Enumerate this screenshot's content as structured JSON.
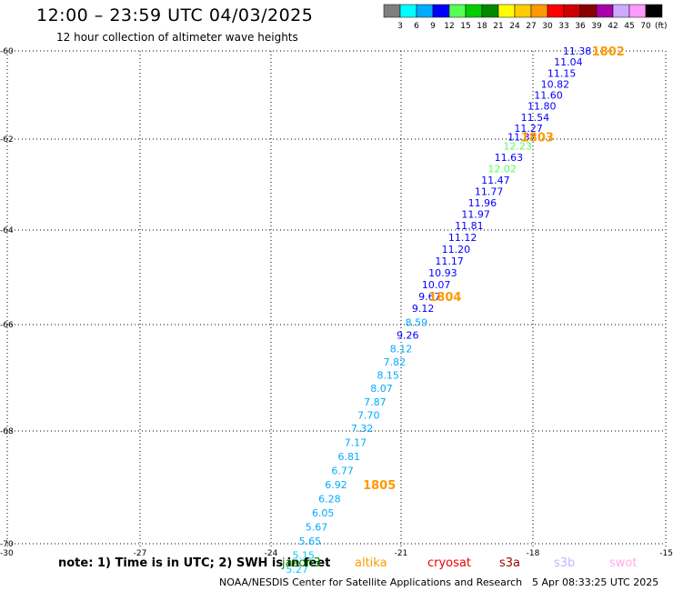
{
  "header": {
    "title": "12:00 – 23:59 UTC 04/03/2025",
    "subtitle": "12 hour collection of altimeter wave heights"
  },
  "legend": {
    "colors": [
      "#7f7f7f",
      "#00ffff",
      "#00aaff",
      "#0000ff",
      "#55ff55",
      "#00cc00",
      "#008800",
      "#ffff00",
      "#ffcc00",
      "#ff9900",
      "#ff0000",
      "#cc0000",
      "#880000",
      "#aa00aa",
      "#ccaaff",
      "#ff99ff",
      "#000000"
    ],
    "ticks": [
      "3",
      "6",
      "9",
      "12",
      "15",
      "18",
      "21",
      "24",
      "27",
      "30",
      "33",
      "36",
      "39",
      "42",
      "45",
      "70"
    ],
    "unit": "(ft)"
  },
  "footer": {
    "note": "note: 1) Time is in UTC; 2) SWH is in feet",
    "satellites": [
      {
        "name": "jason3",
        "color": "#008800"
      },
      {
        "name": "altika",
        "color": "#ff9900"
      },
      {
        "name": "cryosat",
        "color": "#ee0000"
      },
      {
        "name": "s3a",
        "color": "#990000"
      },
      {
        "name": "s3b",
        "color": "#c8b4ff"
      },
      {
        "name": "swot",
        "color": "#ffaaee"
      }
    ],
    "credit": "NOAA/NESDIS Center for Satellite Applications and Research",
    "timestamp": "5 Apr 08:33:25 UTC 2025"
  },
  "chart_data": {
    "type": "scatter",
    "xlim": [
      -30,
      -15
    ],
    "ylim": [
      -70,
      -60
    ],
    "x_ticks": [
      "-30",
      "-27",
      "-24",
      "-21",
      "-18",
      "-15"
    ],
    "y_ticks": [
      "-60",
      "-62",
      "-64",
      "-66",
      "-68",
      "-70"
    ],
    "grid": true,
    "points": [
      {
        "lon": -17.0,
        "lat": -60.0,
        "label": "11.38",
        "color": "#0000ff"
      },
      {
        "lon": -17.2,
        "lat": -60.25,
        "label": "11.04",
        "color": "#0000ff"
      },
      {
        "lon": -17.35,
        "lat": -60.5,
        "label": "11.15",
        "color": "#0000ff"
      },
      {
        "lon": -17.5,
        "lat": -60.75,
        "label": "10.82",
        "color": "#0000ff"
      },
      {
        "lon": -17.65,
        "lat": -61.0,
        "label": "11.60",
        "color": "#0000ff"
      },
      {
        "lon": -17.8,
        "lat": -61.25,
        "label": "11.80",
        "color": "#0000ff"
      },
      {
        "lon": -17.95,
        "lat": -61.5,
        "label": "11.54",
        "color": "#0000ff"
      },
      {
        "lon": -18.1,
        "lat": -61.75,
        "label": "11.27",
        "color": "#0000ff"
      },
      {
        "lon": -18.25,
        "lat": -61.95,
        "label": "11.37",
        "color": "#0000ff"
      },
      {
        "lon": -18.35,
        "lat": -62.15,
        "label": "12.23",
        "color": "#55ff55"
      },
      {
        "lon": -18.55,
        "lat": -62.4,
        "label": "11.63",
        "color": "#0000ff"
      },
      {
        "lon": -18.7,
        "lat": -62.65,
        "label": "12.02",
        "color": "#55ff55"
      },
      {
        "lon": -18.85,
        "lat": -62.9,
        "label": "11.47",
        "color": "#0000ff"
      },
      {
        "lon": -19.0,
        "lat": -63.15,
        "label": "11.77",
        "color": "#0000ff"
      },
      {
        "lon": -19.15,
        "lat": -63.4,
        "label": "11.96",
        "color": "#0000ff"
      },
      {
        "lon": -19.3,
        "lat": -63.65,
        "label": "11.97",
        "color": "#0000ff"
      },
      {
        "lon": -19.45,
        "lat": -63.9,
        "label": "11.81",
        "color": "#0000ff"
      },
      {
        "lon": -19.6,
        "lat": -64.15,
        "label": "11.12",
        "color": "#0000ff"
      },
      {
        "lon": -19.75,
        "lat": -64.4,
        "label": "11.20",
        "color": "#0000ff"
      },
      {
        "lon": -19.9,
        "lat": -64.65,
        "label": "11.17",
        "color": "#0000ff"
      },
      {
        "lon": -20.05,
        "lat": -64.9,
        "label": "10.93",
        "color": "#0000ff"
      },
      {
        "lon": -20.2,
        "lat": -65.15,
        "label": "10.07",
        "color": "#0000ff"
      },
      {
        "lon": -20.35,
        "lat": -65.4,
        "label": "9.67",
        "color": "#0000ff"
      },
      {
        "lon": -20.5,
        "lat": -65.65,
        "label": "9.12",
        "color": "#0000ff"
      },
      {
        "lon": -20.65,
        "lat": -65.95,
        "label": "8.59",
        "color": "#00aaff"
      },
      {
        "lon": -20.85,
        "lat": -66.2,
        "label": "9.26",
        "color": "#0000ff"
      },
      {
        "lon": -21.0,
        "lat": -66.45,
        "label": "8.12",
        "color": "#00aaff"
      },
      {
        "lon": -21.15,
        "lat": -66.7,
        "label": "7.82",
        "color": "#00aaff"
      },
      {
        "lon": -21.3,
        "lat": -66.95,
        "label": "8.15",
        "color": "#00aaff"
      },
      {
        "lon": -21.45,
        "lat": -67.2,
        "label": "8.07",
        "color": "#00aaff"
      },
      {
        "lon": -21.6,
        "lat": -67.45,
        "label": "7.87",
        "color": "#00aaff"
      },
      {
        "lon": -21.75,
        "lat": -67.7,
        "label": "7.70",
        "color": "#00aaff"
      },
      {
        "lon": -21.9,
        "lat": -67.95,
        "label": "7.32",
        "color": "#00aaff"
      },
      {
        "lon": -22.05,
        "lat": -68.2,
        "label": "7.17",
        "color": "#00aaff"
      },
      {
        "lon": -22.2,
        "lat": -68.45,
        "label": "6.81",
        "color": "#00aaff"
      },
      {
        "lon": -22.35,
        "lat": -68.7,
        "label": "6.77",
        "color": "#00aaff"
      },
      {
        "lon": -22.5,
        "lat": -68.95,
        "label": "6.92",
        "color": "#00aaff"
      },
      {
        "lon": -22.65,
        "lat": -69.2,
        "label": "6.28",
        "color": "#00aaff"
      },
      {
        "lon": -22.8,
        "lat": -69.45,
        "label": "6.05",
        "color": "#00aaff"
      },
      {
        "lon": -22.95,
        "lat": -69.7,
        "label": "5.67",
        "color": "#00aaff"
      },
      {
        "lon": -23.1,
        "lat": -69.95,
        "label": "5.65",
        "color": "#00aaff"
      },
      {
        "lon": -23.25,
        "lat": -70.2,
        "label": "5.15",
        "color": "#00ccff"
      },
      {
        "lon": -23.4,
        "lat": -70.45,
        "label": "5.27",
        "color": "#00ccff"
      }
    ],
    "time_labels": [
      {
        "lon": -16.3,
        "lat": -60.0,
        "label": "1802",
        "color": "#ff9900"
      },
      {
        "lon": -17.9,
        "lat": -61.95,
        "label": "1803",
        "color": "#ff9900"
      },
      {
        "lon": -20.0,
        "lat": -65.4,
        "label": "1804",
        "color": "#ff9900"
      },
      {
        "lon": -21.5,
        "lat": -68.95,
        "label": "1805",
        "color": "#ff9900"
      }
    ]
  }
}
